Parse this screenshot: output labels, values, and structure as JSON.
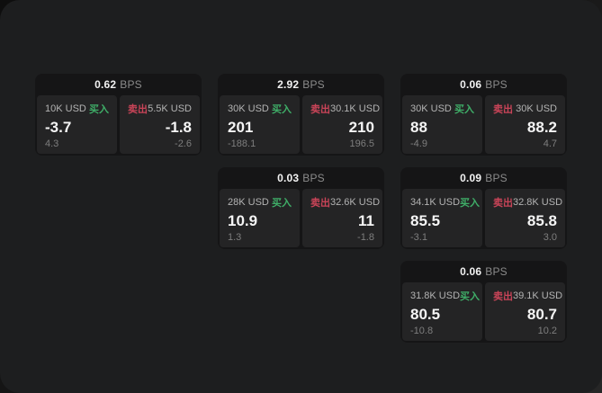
{
  "labels": {
    "buy": "买入",
    "sell": "卖出",
    "bps_unit": "BPS"
  },
  "colors": {
    "buy_green": "#3fae68",
    "sell_red": "#c94458",
    "window_bg": "#1d1e1f",
    "card_bg": "#151516",
    "tile_bg": "#242425"
  },
  "cards": [
    {
      "bps": "0.62",
      "buy_size": "10K USD",
      "sell_size": "5.5K USD",
      "buy_price": "-3.7",
      "sell_price": "-1.8",
      "buy_sub": "4.3",
      "sell_sub": "-2.6"
    },
    {
      "bps": "2.92",
      "buy_size": "30K USD",
      "sell_size": "30.1K USD",
      "buy_price": "201",
      "sell_price": "210",
      "buy_sub": "-188.1",
      "sell_sub": "196.5"
    },
    {
      "bps": "0.06",
      "buy_size": "30K USD",
      "sell_size": "30K USD",
      "buy_price": "88",
      "sell_price": "88.2",
      "buy_sub": "-4.9",
      "sell_sub": "4.7"
    },
    {
      "bps": "0.03",
      "buy_size": "28K USD",
      "sell_size": "32.6K USD",
      "buy_price": "10.9",
      "sell_price": "11",
      "buy_sub": "1.3",
      "sell_sub": "-1.8"
    },
    {
      "bps": "0.09",
      "buy_size": "34.1K USD",
      "sell_size": "32.8K USD",
      "buy_price": "85.5",
      "sell_price": "85.8",
      "buy_sub": "-3.1",
      "sell_sub": "3.0"
    },
    {
      "bps": "0.06",
      "buy_size": "31.8K USD",
      "sell_size": "39.1K USD",
      "buy_price": "80.5",
      "sell_price": "80.7",
      "buy_sub": "-10.8",
      "sell_sub": "10.2"
    }
  ]
}
